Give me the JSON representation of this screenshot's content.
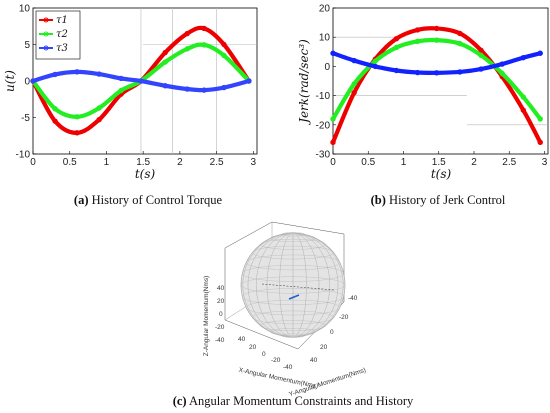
{
  "chart_data": [
    {
      "type": "line",
      "panel": "a",
      "caption_tag": "(a)",
      "caption_text": " History of Control Torque",
      "xlabel": "t(s)",
      "ylabel": "u(t)",
      "xlim": [
        0,
        3.05
      ],
      "ylim": [
        -10,
        10
      ],
      "xticks": [
        0,
        0.5,
        1,
        1.5,
        2,
        2.5,
        3
      ],
      "yticks": [
        -10,
        -5,
        0,
        5,
        10
      ],
      "legend": "top-left",
      "series": [
        {
          "name": "τ1",
          "color": "#ee0000",
          "x": [
            0,
            0.3,
            0.6,
            0.9,
            1.2,
            1.47,
            1.8,
            2.1,
            2.33,
            2.6,
            2.94
          ],
          "y": [
            0,
            -5.5,
            -7.1,
            -5.3,
            -1.8,
            0,
            3.9,
            6.5,
            7.2,
            5.0,
            0
          ]
        },
        {
          "name": "τ2",
          "color": "#22ee22",
          "x": [
            0,
            0.3,
            0.6,
            0.9,
            1.2,
            1.47,
            1.8,
            2.1,
            2.33,
            2.6,
            2.94
          ],
          "y": [
            0,
            -3.8,
            -4.9,
            -3.7,
            -1.3,
            0,
            2.6,
            4.4,
            4.95,
            3.5,
            0
          ]
        },
        {
          "name": "τ3",
          "color": "#3344ff",
          "x": [
            0,
            0.3,
            0.6,
            0.9,
            1.2,
            1.47,
            1.8,
            2.1,
            2.33,
            2.6,
            2.94
          ],
          "y": [
            0,
            0.9,
            1.25,
            0.95,
            0.35,
            0,
            -0.65,
            -1.1,
            -1.25,
            -0.9,
            0
          ]
        }
      ]
    },
    {
      "type": "line",
      "panel": "b",
      "caption_tag": "(b)",
      "caption_text": " History of Jerk Control",
      "xlabel": "t(s)",
      "ylabel": "Jerk(rad/sec³)",
      "xlim": [
        0,
        3.05
      ],
      "ylim": [
        -30,
        20
      ],
      "xticks": [
        0,
        0.5,
        1,
        1.5,
        2,
        2.5,
        3
      ],
      "yticks": [
        -30,
        -20,
        -10,
        0,
        10,
        20
      ],
      "series": [
        {
          "color": "#ee0000",
          "x": [
            0,
            0.3,
            0.6,
            0.9,
            1.2,
            1.47,
            1.8,
            2.1,
            2.4,
            2.7,
            2.94
          ],
          "y": [
            -26,
            -9,
            2.5,
            9.5,
            12.5,
            13,
            11.3,
            5.5,
            -3.5,
            -15,
            -26
          ]
        },
        {
          "color": "#22ee22",
          "x": [
            0,
            0.3,
            0.6,
            0.9,
            1.2,
            1.47,
            1.8,
            2.1,
            2.4,
            2.7,
            2.94
          ],
          "y": [
            -18,
            -6,
            1.8,
            6.5,
            8.6,
            9,
            7.8,
            3.8,
            -2.4,
            -10.5,
            -18
          ]
        },
        {
          "color": "#1122ff",
          "x": [
            0,
            0.3,
            0.6,
            0.9,
            1.2,
            1.47,
            1.8,
            2.1,
            2.4,
            2.7,
            2.94
          ],
          "y": [
            4.5,
            2,
            0,
            -1.4,
            -2.1,
            -2.2,
            -1.9,
            -0.9,
            0.8,
            3.0,
            4.5
          ]
        }
      ]
    },
    {
      "type": "scatter3d",
      "panel": "c",
      "caption_tag": "(c)",
      "caption_text": " Angular Momentum Constraints and History",
      "xlabel": "X-Angular Momentum(Nms)",
      "ylabel": "Y-Angular Momentum(Nms)",
      "zlabel": "Z-Angular Momentum(Nms)",
      "x_tick_labels": [
        "40",
        "20",
        "0",
        "-20",
        "-40"
      ],
      "y_tick_labels": [
        "-40",
        "-20",
        "0",
        "20",
        "40"
      ],
      "z_tick_labels": [
        "40",
        "20",
        "0",
        "-20",
        "-40"
      ],
      "history_color": "#1f5fd0"
    }
  ]
}
